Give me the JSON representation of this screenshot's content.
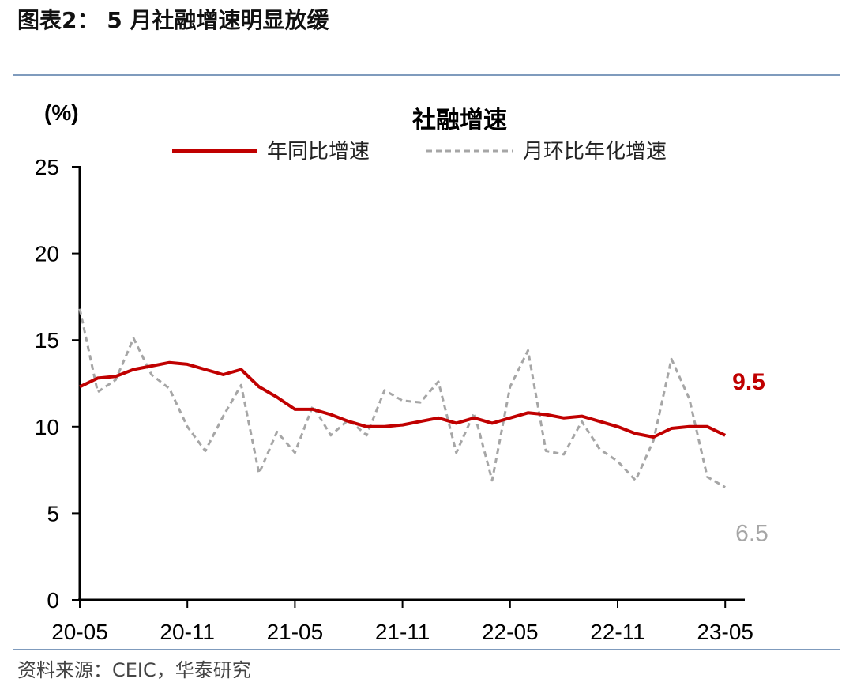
{
  "figure": {
    "title": "图表2： 5 月社融增速明显放缓",
    "source": "资料来源：CEIC，华泰研究"
  },
  "colors": {
    "yoy": "#c00000",
    "mom": "#a6a6a6",
    "rule": "#7f9bbd"
  },
  "chart_data": {
    "type": "line",
    "title": "社融增速",
    "ylabel": "(%)",
    "xlabel": "",
    "ylim": [
      0,
      25
    ],
    "yticks": [
      0,
      5,
      10,
      15,
      20,
      25
    ],
    "x": [
      "2020-05",
      "2020-06",
      "2020-07",
      "2020-08",
      "2020-09",
      "2020-10",
      "2020-11",
      "2020-12",
      "2021-01",
      "2021-02",
      "2021-03",
      "2021-04",
      "2021-05",
      "2021-06",
      "2021-07",
      "2021-08",
      "2021-09",
      "2021-10",
      "2021-11",
      "2021-12",
      "2022-01",
      "2022-02",
      "2022-03",
      "2022-04",
      "2022-05",
      "2022-06",
      "2022-07",
      "2022-08",
      "2022-09",
      "2022-10",
      "2022-11",
      "2022-12",
      "2023-01",
      "2023-02",
      "2023-03",
      "2023-04",
      "2023-05"
    ],
    "xtick_labels": [
      "20-05",
      "20-11",
      "21-05",
      "21-11",
      "22-05",
      "22-11",
      "23-05"
    ],
    "xtick_positions": [
      "2020-05",
      "2020-11",
      "2021-05",
      "2021-11",
      "2022-05",
      "2022-11",
      "2023-05"
    ],
    "legend_position": "top",
    "series": [
      {
        "name": "年同比增速",
        "style": "solid",
        "values": [
          12.3,
          12.8,
          12.9,
          13.3,
          13.5,
          13.7,
          13.6,
          13.3,
          13.0,
          13.3,
          12.3,
          11.7,
          11.0,
          11.0,
          10.7,
          10.3,
          10.0,
          10.0,
          10.1,
          10.3,
          10.5,
          10.2,
          10.5,
          10.2,
          10.5,
          10.8,
          10.7,
          10.5,
          10.6,
          10.3,
          10.0,
          9.6,
          9.4,
          9.9,
          10.0,
          10.0,
          9.5
        ],
        "end_label": "9.5"
      },
      {
        "name": "月环比年化增速",
        "style": "dashed",
        "values": [
          16.8,
          12.0,
          12.7,
          15.1,
          13.0,
          12.2,
          10.0,
          8.6,
          10.6,
          12.4,
          7.3,
          9.7,
          8.5,
          11.2,
          9.5,
          10.4,
          9.5,
          12.1,
          11.5,
          11.4,
          12.6,
          8.5,
          10.8,
          6.9,
          12.3,
          14.4,
          8.6,
          8.4,
          10.3,
          8.7,
          8.0,
          6.9,
          9.2,
          13.9,
          11.6,
          7.1,
          6.5
        ],
        "end_label": "6.5"
      }
    ]
  }
}
